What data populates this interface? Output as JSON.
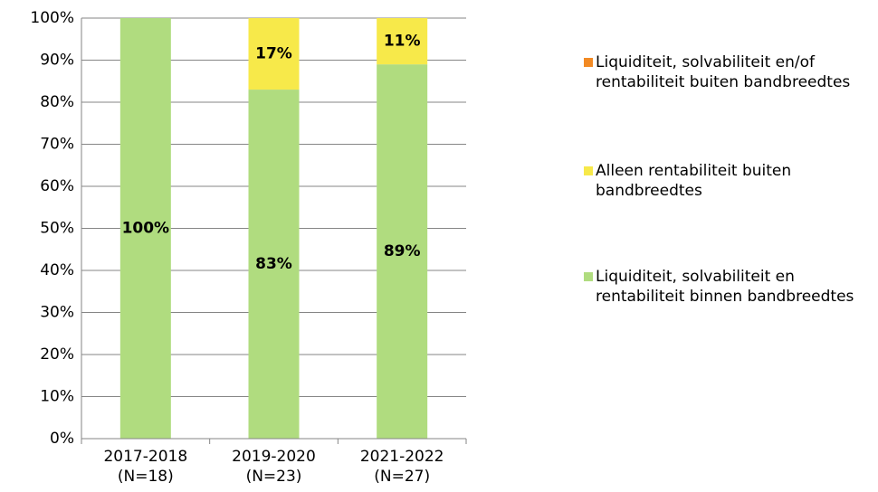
{
  "chart_data": {
    "type": "stacked_bar",
    "categories": [
      [
        "2017-2018",
        "(N=18)"
      ],
      [
        "2019-2020",
        "(N=23)"
      ],
      [
        "2021-2022",
        "(N=27)"
      ]
    ],
    "series": [
      {
        "name": "Liquiditeit, solvabiliteit en rentabiliteit binnen bandbreedtes",
        "color": "#b0dc7f",
        "values": [
          100,
          83,
          89
        ],
        "value_labels": [
          "100%",
          "83%",
          "89%"
        ]
      },
      {
        "name": "Alleen rentabiliteit buiten bandbreedtes",
        "color": "#f7e94a",
        "values": [
          0,
          17,
          11
        ],
        "value_labels": [
          null,
          "17%",
          "11%"
        ]
      },
      {
        "name": "Liquiditeit, solvabiliteit en/of rentabiliteit buiten bandbreedtes",
        "color": "#f28a24",
        "values": [
          0,
          0,
          0
        ]
      }
    ],
    "ylim": [
      0,
      100
    ],
    "yticks": [
      {
        "value": 0,
        "label": "0%"
      },
      {
        "value": 10,
        "label": "10%"
      },
      {
        "value": 20,
        "label": "20%"
      },
      {
        "value": 30,
        "label": "30%"
      },
      {
        "value": 40,
        "label": "40%"
      },
      {
        "value": 50,
        "label": "50%"
      },
      {
        "value": 60,
        "label": "60%"
      },
      {
        "value": 70,
        "label": "70%"
      },
      {
        "value": 80,
        "label": "80%"
      },
      {
        "value": 90,
        "label": "90%"
      },
      {
        "value": 100,
        "label": "100%"
      }
    ],
    "grid": true
  }
}
